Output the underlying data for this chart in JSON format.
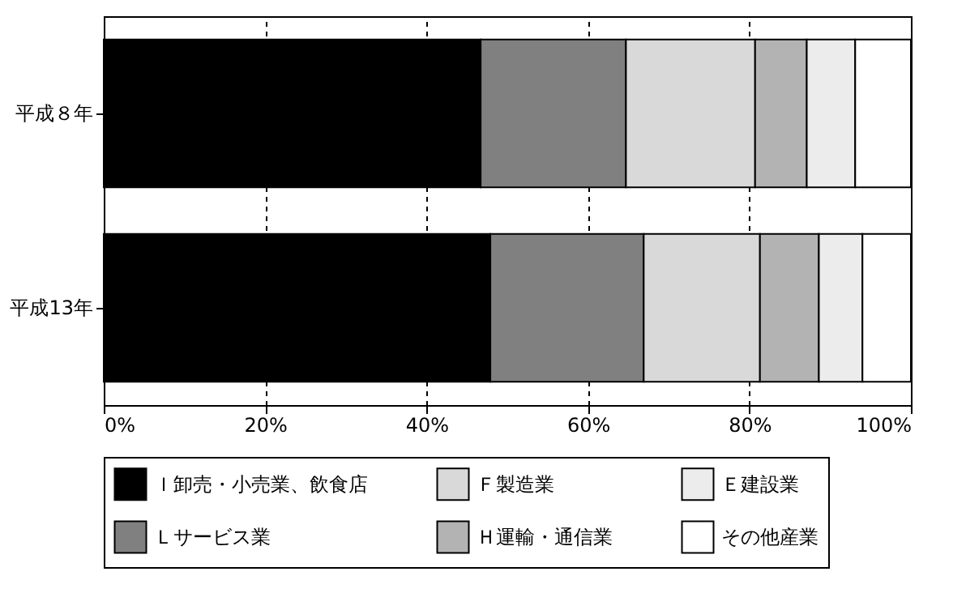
{
  "chart_data": {
    "type": "bar",
    "orientation": "horizontal",
    "stacked": true,
    "categories": [
      "平成８年",
      "平成13年"
    ],
    "series": [
      {
        "name": "Ｉ卸売・小売業、飲食店",
        "color": "#000000",
        "values": [
          46.7,
          47.9
        ]
      },
      {
        "name": "Ｌサービス業",
        "color": "#808080",
        "values": [
          18.0,
          19.0
        ]
      },
      {
        "name": "Ｆ製造業",
        "color": "#d9d9d9",
        "values": [
          16.0,
          14.4
        ]
      },
      {
        "name": "Ｈ運輸・通信業",
        "color": "#b3b3b3",
        "values": [
          6.4,
          7.3
        ]
      },
      {
        "name": "Ｅ建設業",
        "color": "#ececec",
        "values": [
          6.0,
          5.4
        ]
      },
      {
        "name": "その他産業",
        "color": "#ffffff",
        "values": [
          6.9,
          6.0
        ]
      }
    ],
    "xlim": [
      0,
      100
    ],
    "xticks": [
      {
        "value": 0,
        "label": "0%"
      },
      {
        "value": 20,
        "label": "20%"
      },
      {
        "value": 40,
        "label": "40%"
      },
      {
        "value": 60,
        "label": "60%"
      },
      {
        "value": 80,
        "label": "80%"
      },
      {
        "value": 100,
        "label": "100%"
      }
    ],
    "grid": "x",
    "legend": "bottom"
  }
}
